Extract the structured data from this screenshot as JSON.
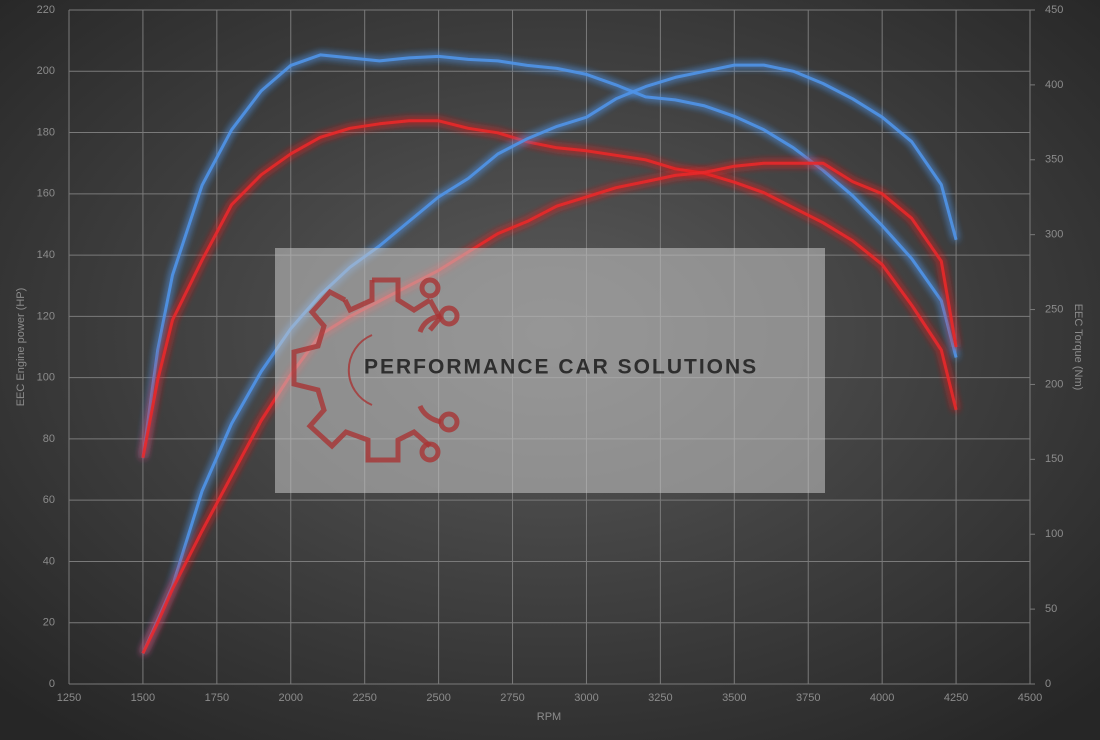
{
  "chart_data": {
    "type": "line",
    "xlabel": "RPM",
    "ylabel": "EEC Engine power (HP)",
    "y2label": "EEC Torque (Nm)",
    "annotations": [
      "PERFORMANCE CAR SOLUTIONS"
    ],
    "x": [
      1500,
      1550,
      1600,
      1700,
      1800,
      1900,
      2000,
      2100,
      2200,
      2300,
      2400,
      2500,
      2600,
      2700,
      2800,
      2900,
      3000,
      3100,
      3200,
      3300,
      3400,
      3500,
      3600,
      3700,
      3800,
      3900,
      4000,
      4100,
      4200,
      4250
    ],
    "series": [
      {
        "color": "#4f93e8",
        "axis": "y2",
        "values": [
          151,
          223,
          273,
          333,
          370,
          396,
          413,
          420,
          418,
          416,
          418,
          419,
          417,
          416,
          413,
          411,
          407,
          400,
          392,
          390,
          386,
          379,
          370,
          358,
          343,
          326,
          306,
          284,
          256,
          218
        ]
      },
      {
        "color": "#e8282a",
        "axis": "y2",
        "values": [
          151,
          203,
          243,
          283,
          320,
          340,
          354,
          365,
          371,
          374,
          376,
          376,
          371,
          368,
          362,
          358,
          356,
          353,
          350,
          344,
          341,
          335,
          328,
          318,
          308,
          296,
          280,
          253,
          223,
          183
        ]
      },
      {
        "color": "#4f93e8",
        "values": [
          10,
          21,
          32,
          63,
          85,
          102,
          116,
          127,
          136,
          143,
          151,
          159,
          165,
          173,
          178,
          182,
          185,
          191,
          195,
          198,
          200,
          202,
          202,
          200,
          196,
          191,
          185,
          177,
          163,
          145
        ]
      },
      {
        "color": "#e8282a",
        "values": [
          10,
          20,
          31,
          50,
          68,
          86,
          101,
          114,
          120,
          125,
          130,
          135,
          141,
          147,
          151,
          156,
          159,
          162,
          164,
          166,
          167,
          169,
          170,
          170,
          170,
          164,
          160,
          152,
          138,
          110
        ]
      }
    ],
    "xlim": [
      1250,
      4500
    ],
    "xticks": [
      1250,
      1500,
      1750,
      2000,
      2250,
      2500,
      2750,
      3000,
      3250,
      3500,
      3750,
      4000,
      4250,
      4500
    ],
    "ylim": [
      0,
      220
    ],
    "yticks": [
      0,
      20,
      40,
      60,
      80,
      100,
      120,
      140,
      160,
      180,
      200,
      220
    ],
    "y2lim": [
      0,
      450
    ],
    "y2ticks": [
      0,
      50,
      100,
      150,
      200,
      250,
      300,
      350,
      400,
      450
    ],
    "grid": true
  }
}
